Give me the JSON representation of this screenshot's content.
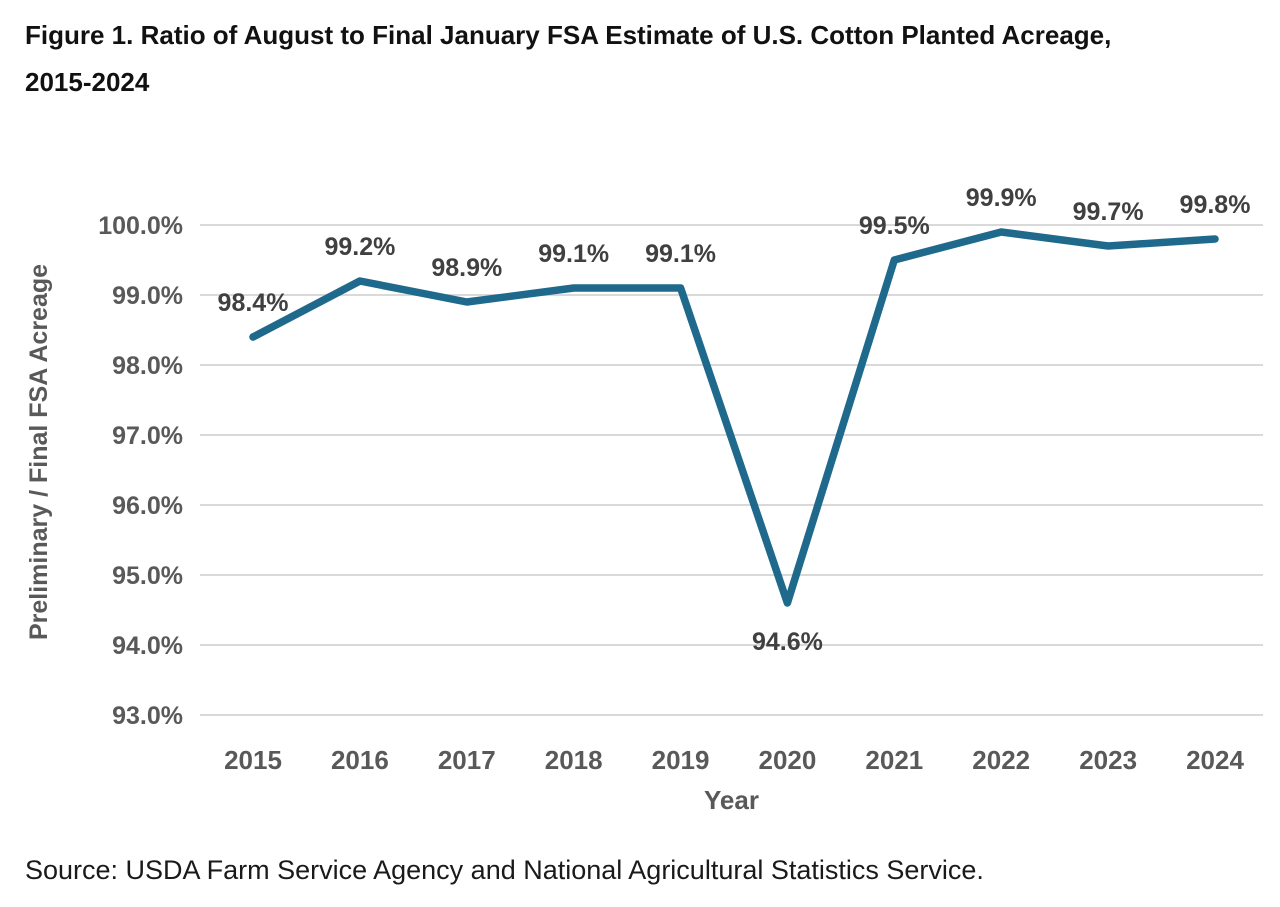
{
  "figure": {
    "title_line1": "Figure 1. Ratio of August to Final January FSA Estimate of U.S. Cotton Planted Acreage,",
    "title_line2": "2015-2024",
    "source": "Source: USDA Farm Service Agency and National Agricultural Statistics Service."
  },
  "chart_data": {
    "type": "line",
    "title": "Figure 1. Ratio of August to Final January FSA Estimate of U.S. Cotton Planted Acreage, 2015-2024",
    "categories": [
      "2015",
      "2016",
      "2017",
      "2018",
      "2019",
      "2020",
      "2021",
      "2022",
      "2023",
      "2024"
    ],
    "values": [
      98.4,
      99.2,
      98.9,
      99.1,
      99.1,
      94.6,
      99.5,
      99.9,
      99.7,
      99.8
    ],
    "point_labels": [
      "98.4%",
      "99.2%",
      "98.9%",
      "99.1%",
      "99.1%",
      "94.6%",
      "99.5%",
      "99.9%",
      "99.7%",
      "99.8%"
    ],
    "label_below_index": 5,
    "xlabel": "Year",
    "ylabel": "Preliminary / Final FSA Acreage",
    "ylim": [
      93.0,
      100.0
    ],
    "ytick_step": 1.0,
    "ytick_labels": [
      "100.0%",
      "99.0%",
      "98.0%",
      "97.0%",
      "96.0%",
      "95.0%",
      "94.0%",
      "93.0%"
    ],
    "ytick_values": [
      100.0,
      99.0,
      98.0,
      97.0,
      96.0,
      95.0,
      94.0,
      93.0
    ],
    "grid": "horizontal",
    "legend": "none",
    "colors": {
      "line": "#1F6A8C",
      "gridline": "#D9D9D9",
      "axis_text": "#595959",
      "data_label": "#404040",
      "title_text": "#111111",
      "source_text": "#1a1a1a",
      "background": "#ffffff"
    }
  }
}
